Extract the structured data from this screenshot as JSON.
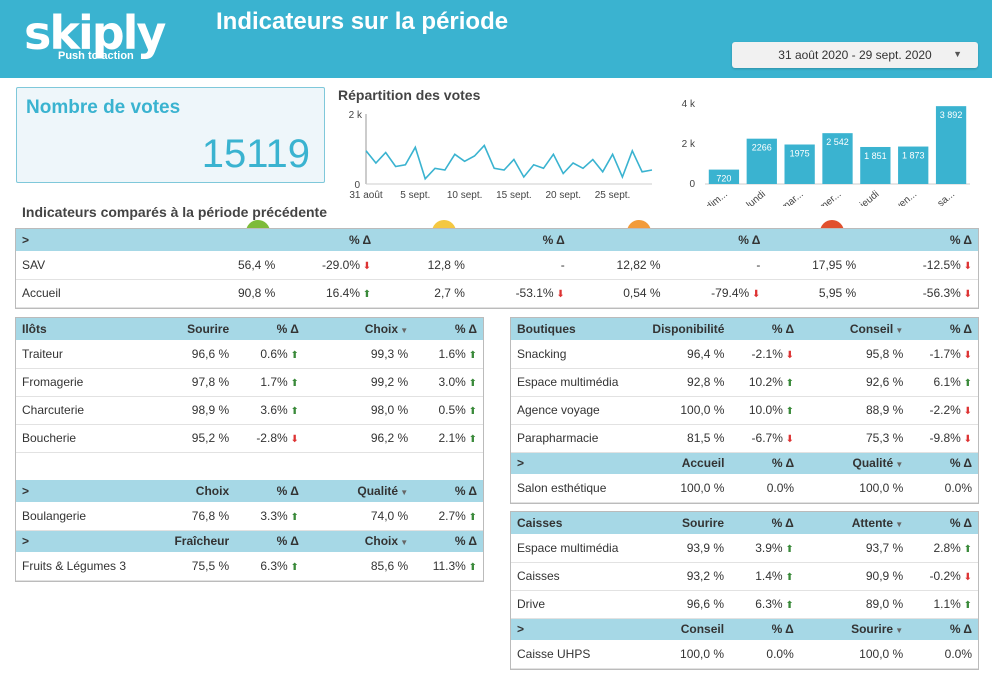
{
  "header": {
    "logo": "skiply",
    "logo_tagline": "Push to action",
    "title": "Indicateurs sur la période",
    "date_range": "31 août 2020 - 29 sept. 2020"
  },
  "votes_card": {
    "label": "Nombre de votes",
    "value": "15119"
  },
  "repartition_title": "Répartition des votes",
  "comparison_title": "Indicateurs comparés à la période précédente",
  "chart_data": [
    {
      "type": "line",
      "title": "Répartition des votes",
      "x_tick_labels": [
        "31 août",
        "5 sept.",
        "10 sept.",
        "15 sept.",
        "20 sept.",
        "25 sept."
      ],
      "y_tick_labels": [
        "2 k",
        "0"
      ],
      "ylim": [
        0,
        2000
      ],
      "x": [
        "31 août",
        "1 sept.",
        "2 sept.",
        "3 sept.",
        "4 sept.",
        "5 sept.",
        "6 sept.",
        "7 sept.",
        "8 sept.",
        "9 sept.",
        "10 sept.",
        "11 sept.",
        "12 sept.",
        "13 sept.",
        "14 sept.",
        "15 sept.",
        "16 sept.",
        "17 sept.",
        "18 sept.",
        "19 sept.",
        "20 sept.",
        "21 sept.",
        "22 sept.",
        "23 sept.",
        "24 sept.",
        "25 sept.",
        "26 sept.",
        "27 sept.",
        "28 sept.",
        "29 sept."
      ],
      "values": [
        950,
        600,
        900,
        500,
        550,
        1050,
        150,
        450,
        400,
        850,
        650,
        800,
        1100,
        450,
        400,
        700,
        200,
        550,
        450,
        850,
        300,
        600,
        450,
        700,
        350,
        850,
        200,
        950,
        350,
        400
      ]
    },
    {
      "type": "bar",
      "categories": [
        "dim...",
        "lundi",
        "mar...",
        "mer...",
        "jeudi",
        "ven...",
        "sa..."
      ],
      "values": [
        720,
        2266,
        1975,
        2542,
        1851,
        1873,
        3892
      ],
      "value_labels": [
        "720",
        "2266",
        "1975",
        "2 542",
        "1 851",
        "1 873",
        "3 892"
      ],
      "y_tick_labels": [
        "4 k",
        "2 k",
        "0"
      ],
      "ylim": [
        0,
        4000
      ]
    }
  ],
  "comparison": {
    "header": [
      "%",
      "Δ"
    ],
    "first_header": ">",
    "pct_delta": "% Δ",
    "rows": [
      {
        "name": "SAV",
        "cells": [
          "56,4 %",
          "-29.0%",
          "12,8 %",
          "-",
          "12,82 %",
          "-",
          "17,95 %",
          "-12.5%"
        ],
        "arrows": [
          "",
          "dn",
          "",
          "",
          "",
          "",
          "",
          "dn"
        ]
      },
      {
        "name": "Accueil",
        "cells": [
          "90,8 %",
          "16.4%",
          "2,7 %",
          "-53.1%",
          "0,54 %",
          "-79.4%",
          "5,95 %",
          "-56.3%"
        ],
        "arrows": [
          "",
          "up",
          "",
          "dn",
          "",
          "dn",
          "",
          "dn"
        ]
      }
    ]
  },
  "left_table": {
    "sections": [
      {
        "headers": [
          "Ilôts",
          "Sourire",
          "% Δ",
          "Choix",
          "% Δ"
        ],
        "rows": [
          [
            "Traiteur",
            "96,6 %",
            "0.6%",
            "99,3 %",
            "1.6%"
          ],
          [
            "Fromagerie",
            "97,8 %",
            "1.7%",
            "99,2 %",
            "3.0%"
          ],
          [
            "Charcuterie",
            "98,9 %",
            "3.6%",
            "98,0 %",
            "0.5%"
          ],
          [
            "Boucherie",
            "95,2 %",
            "-2.8%",
            "96,2 %",
            "2.1%"
          ]
        ]
      },
      {
        "headers": [
          ">",
          "Choix",
          "% Δ",
          "Qualité",
          "% Δ"
        ],
        "rows": [
          [
            "Boulangerie",
            "76,8 %",
            "3.3%",
            "74,0 %",
            "2.7%"
          ]
        ]
      },
      {
        "headers": [
          ">",
          "Fraîcheur",
          "% Δ",
          "Choix",
          "% Δ"
        ],
        "rows": [
          [
            "Fruits & Légumes 3",
            "75,5 %",
            "6.3%",
            "85,6 %",
            "11.3%"
          ]
        ]
      }
    ]
  },
  "boutiques_table": {
    "sections": [
      {
        "headers": [
          "Boutiques",
          "Disponibilité",
          "% Δ",
          "Conseil",
          "% Δ"
        ],
        "rows": [
          [
            "Snacking",
            "96,4 %",
            "-2.1%",
            "95,8 %",
            "-1.7%"
          ],
          [
            "Espace multimédia",
            "92,8 %",
            "10.2%",
            "92,6 %",
            "6.1%"
          ],
          [
            "Agence voyage",
            "100,0 %",
            "10.0%",
            "88,9 %",
            "-2.2%"
          ],
          [
            "Parapharmacie",
            "81,5 %",
            "-6.7%",
            "75,3 %",
            "-9.8%"
          ]
        ]
      },
      {
        "headers": [
          ">",
          "Accueil",
          "% Δ",
          "Qualité",
          "% Δ"
        ],
        "rows": [
          [
            "Salon esthétique",
            "100,0 %",
            "0.0%",
            "100,0 %",
            "0.0%"
          ]
        ]
      }
    ]
  },
  "caisses_table": {
    "sections": [
      {
        "headers": [
          "Caisses",
          "Sourire",
          "% Δ",
          "Attente",
          "% Δ"
        ],
        "rows": [
          [
            "Espace multimédia",
            "93,9 %",
            "3.9%",
            "93,7 %",
            "2.8%"
          ],
          [
            "Caisses",
            "93,2 %",
            "1.4%",
            "90,9 %",
            "-0.2%"
          ],
          [
            "Drive",
            "96,6 %",
            "6.3%",
            "89,0 %",
            "1.1%"
          ]
        ]
      },
      {
        "headers": [
          ">",
          "Conseil",
          "% Δ",
          "Sourire",
          "% Δ"
        ],
        "rows": [
          [
            "Caisse UHPS",
            "100,0 %",
            "0.0%",
            "100,0 %",
            "0.0%"
          ]
        ]
      }
    ]
  },
  "colors": {
    "accent": "#3ab3d0",
    "header_row": "#a6d8e6",
    "up": "#3a8a3a",
    "down": "#dd3333"
  }
}
